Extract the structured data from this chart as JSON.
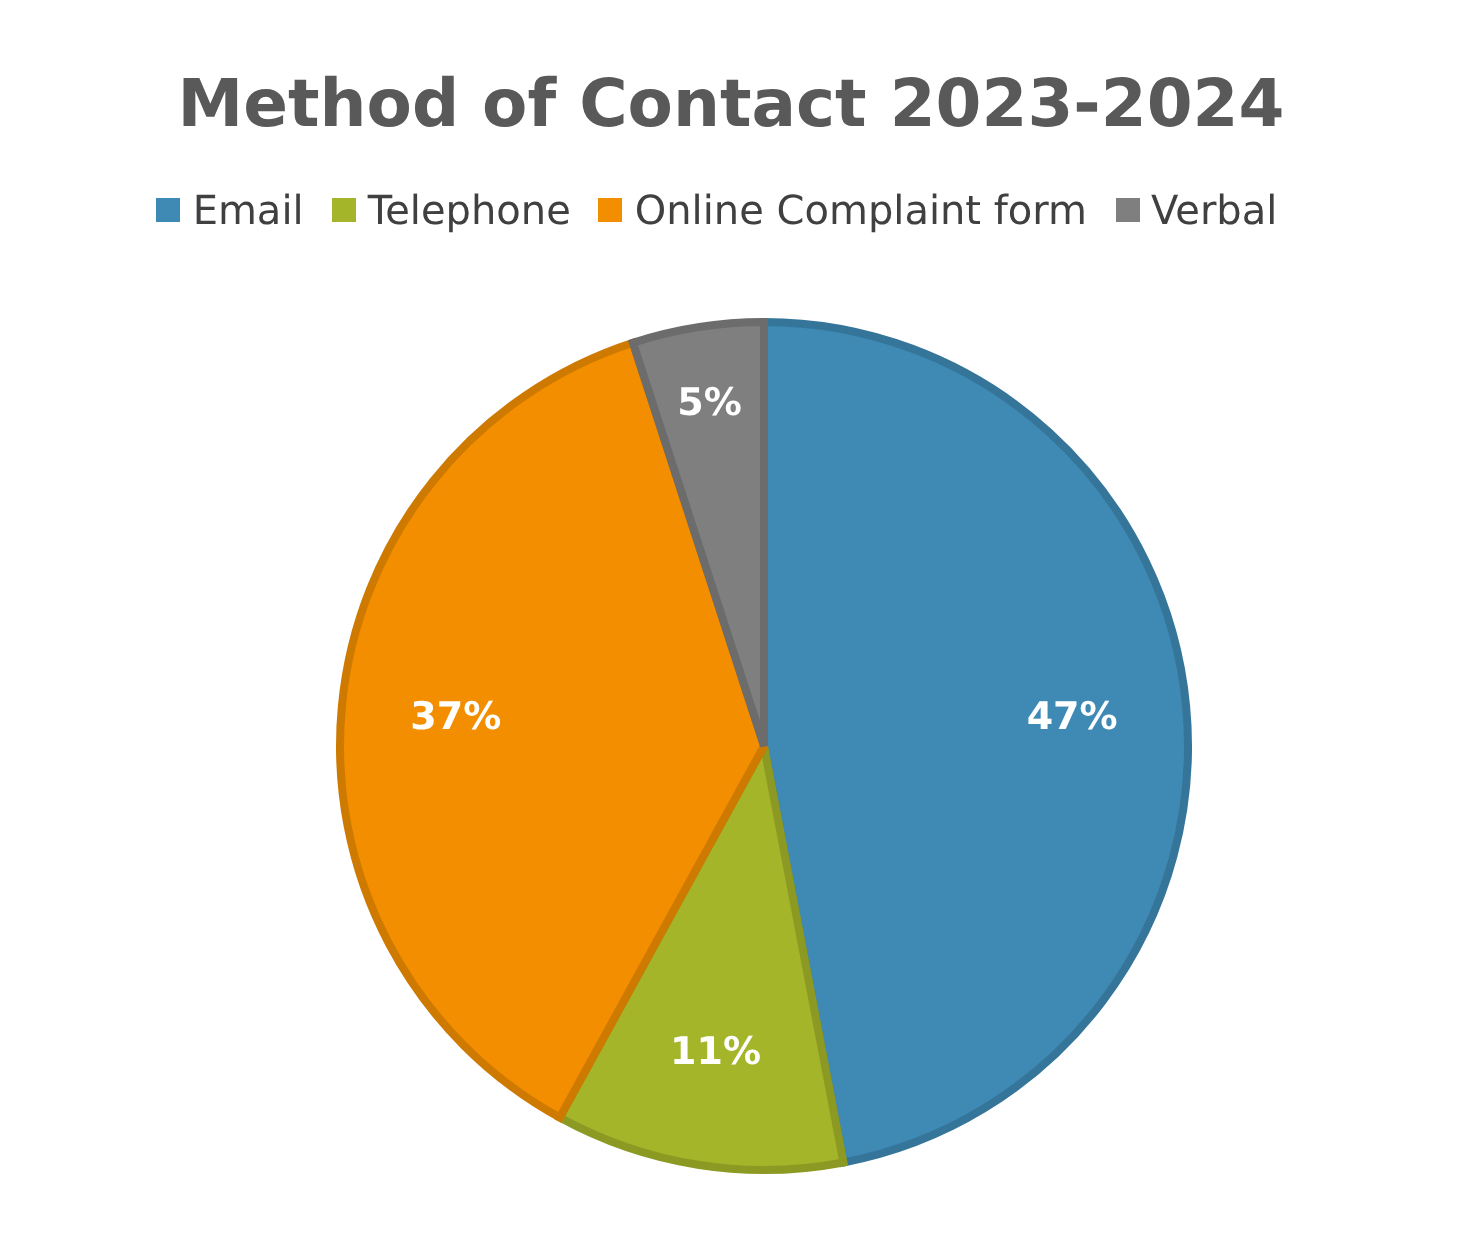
{
  "chart_data": {
    "type": "pie",
    "title": "Method of Contact 2023-2024",
    "categories": [
      "Email",
      "Telephone",
      "Online Complaint form",
      "Verbal"
    ],
    "values": [
      47,
      11,
      37,
      5
    ],
    "colors": [
      "#3e8ab4",
      "#a5b52a",
      "#f28e00",
      "#7f7f7f"
    ],
    "value_labels": [
      "47%",
      "11%",
      "37%",
      "5%"
    ],
    "legend": "top"
  }
}
